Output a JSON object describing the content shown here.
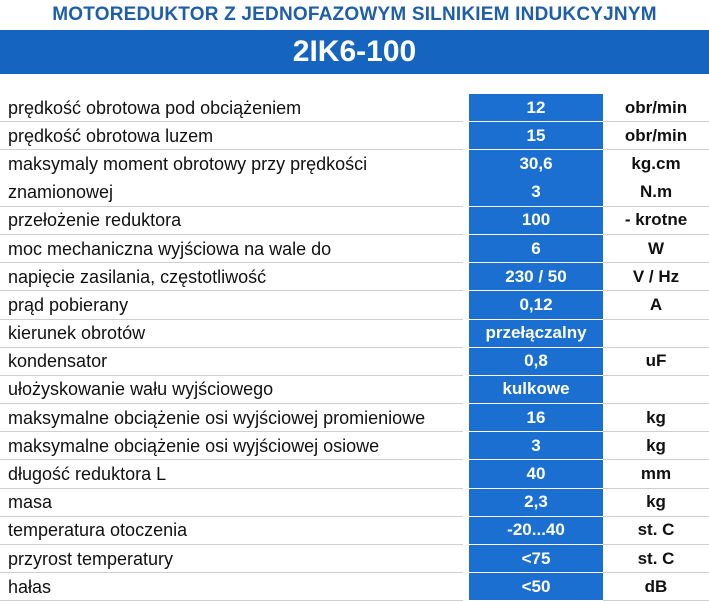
{
  "header": {
    "title": "MOTOREDUKTOR Z JEDNOFAZOWYM SILNIKIEM INDUKCYJNYM",
    "model": "2IK6-100"
  },
  "rows": [
    {
      "label": "prędkość obrotowa pod obciążeniem",
      "value": "12",
      "unit": "obr/min"
    },
    {
      "label": "prędkość obrotowa luzem",
      "value": "15",
      "unit": "obr/min"
    },
    {
      "label": "maksymaly moment obrotowy przy prędkości",
      "label2": "znamionowej",
      "value": "30,6",
      "value2": "3",
      "unit": "kg.cm",
      "unit2": "N.m"
    },
    {
      "label": "przełożenie reduktora",
      "value": "100",
      "unit": "- krotne"
    },
    {
      "label": "moc mechaniczna wyjściowa na  wale do",
      "value": "6",
      "unit": "W"
    },
    {
      "label": "napięcie zasilania, częstotliwość",
      "value": "230 / 50",
      "unit": "V / Hz"
    },
    {
      "label": "prąd pobierany",
      "value": "0,12",
      "unit": "A"
    },
    {
      "label": "kierunek obrotów",
      "value": "przełączalny",
      "unit": ""
    },
    {
      "label": "kondensator",
      "value": "0,8",
      "unit": "uF"
    },
    {
      "label": "ułożyskowanie wału wyjściowego",
      "value": "kulkowe",
      "unit": ""
    },
    {
      "label": "maksymalne obciążenie osi wyjściowej promieniowe",
      "value": "16",
      "unit": "kg"
    },
    {
      "label": "maksymalne obciążenie osi wyjściowej  osiowe",
      "value": "3",
      "unit": "kg"
    },
    {
      "label": "długość reduktora L",
      "value": "40",
      "unit": "mm"
    },
    {
      "label": "masa",
      "value": "2,3",
      "unit": "kg"
    },
    {
      "label": "temperatura otoczenia",
      "value": "-20...40",
      "unit": "st. C"
    },
    {
      "label": "przyrost temperatury",
      "value": "<75",
      "unit": "st. C"
    },
    {
      "label": "hałas",
      "value": "<50",
      "unit": "dB"
    }
  ],
  "colors": {
    "title": "#1f5ea8",
    "model_band": "#1565c0",
    "value_cell": "#1a6fd1"
  }
}
